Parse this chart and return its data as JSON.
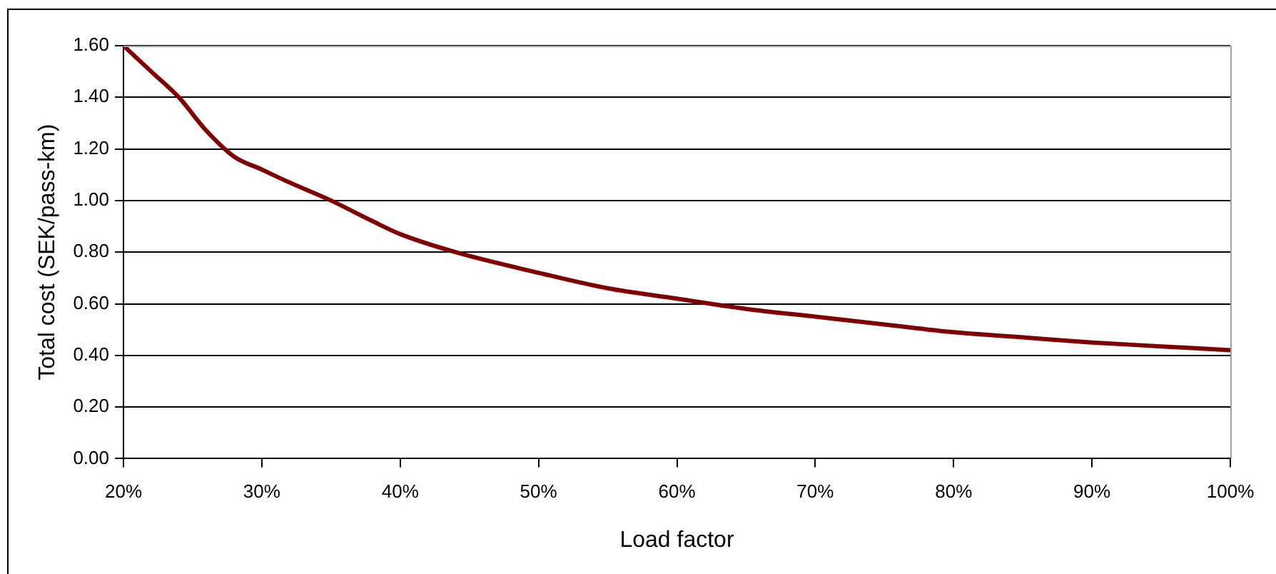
{
  "chart_data": {
    "type": "line",
    "xlabel": "Load factor",
    "ylabel": "Total cost (SEK/pass-km)",
    "x": [
      20,
      22,
      24,
      26,
      28,
      30,
      32,
      35,
      38,
      40,
      44,
      50,
      55,
      60,
      65,
      70,
      75,
      80,
      85,
      90,
      95,
      100
    ],
    "series": [
      {
        "color": "#800000",
        "values": [
          1.6,
          1.5,
          1.4,
          1.27,
          1.17,
          1.12,
          1.07,
          1.0,
          0.92,
          0.87,
          0.8,
          0.72,
          0.66,
          0.62,
          0.58,
          0.55,
          0.52,
          0.49,
          0.47,
          0.45,
          0.435,
          0.42
        ]
      }
    ],
    "xlim": [
      20,
      100
    ],
    "xticks": [
      {
        "value": 20,
        "label": "20%"
      },
      {
        "value": 30,
        "label": "30%"
      },
      {
        "value": 40,
        "label": "40%"
      },
      {
        "value": 50,
        "label": "50%"
      },
      {
        "value": 60,
        "label": "60%"
      },
      {
        "value": 70,
        "label": "70%"
      },
      {
        "value": 80,
        "label": "80%"
      },
      {
        "value": 90,
        "label": "90%"
      },
      {
        "value": 100,
        "label": "100%"
      }
    ],
    "ylim": [
      0,
      1.6
    ],
    "yticks": [
      {
        "value": 0,
        "label": "0.00"
      },
      {
        "value": 0.2,
        "label": "0.20"
      },
      {
        "value": 0.4,
        "label": "0.40"
      },
      {
        "value": 0.6,
        "label": "0.60"
      },
      {
        "value": 0.8,
        "label": "0.80"
      },
      {
        "value": 1.0,
        "label": "1.00"
      },
      {
        "value": 1.2,
        "label": "1.20"
      },
      {
        "value": 1.4,
        "label": "1.40"
      },
      {
        "value": 1.6,
        "label": "1.60"
      }
    ],
    "grid": "y",
    "legend": false,
    "marker": "none",
    "line_style": "solid"
  }
}
